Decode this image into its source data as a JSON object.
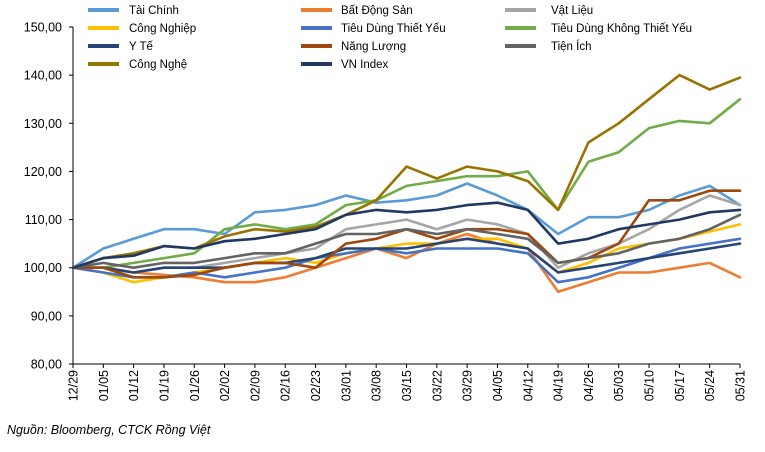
{
  "source_note": "Nguồn: Bloomberg, CTCK Rồng Việt",
  "chart_data": {
    "type": "line",
    "grid": false,
    "legend_placement": "top",
    "ylim": [
      80,
      150
    ],
    "y_ticks": [
      80,
      90,
      100,
      110,
      120,
      130,
      140,
      150
    ],
    "y_tick_labels": [
      "80,00",
      "90,00",
      "100,00",
      "110,00",
      "120,00",
      "130,00",
      "140,00",
      "150,00"
    ],
    "x": [
      "12/29",
      "01/05",
      "01/12",
      "01/19",
      "01/26",
      "02/02",
      "02/09",
      "02/16",
      "02/23",
      "03/01",
      "03/08",
      "03/15",
      "03/22",
      "03/29",
      "04/05",
      "04/12",
      "04/19",
      "04/26",
      "05/03",
      "05/10",
      "05/17",
      "05/24",
      "05/31"
    ],
    "series": [
      {
        "name": "Tài Chính",
        "color": "#5B9BD5",
        "values": [
          100,
          104,
          106,
          108,
          108,
          107,
          111.5,
          112,
          113,
          115,
          113.5,
          114,
          115,
          117.5,
          115,
          112,
          107,
          110.5,
          110.5,
          112,
          115,
          117,
          113
        ]
      },
      {
        "name": "Bất Động Sản",
        "color": "#ED7D31",
        "values": [
          100,
          100,
          99,
          98.5,
          98,
          97,
          97,
          98,
          100,
          102,
          104,
          102,
          105,
          107,
          105,
          104,
          95,
          97,
          99,
          99,
          100,
          101,
          98
        ]
      },
      {
        "name": "Vật Liệu",
        "color": "#A5A5A5",
        "values": [
          100,
          100,
          99,
          100,
          100,
          101,
          102,
          103,
          104,
          108,
          109,
          110,
          108,
          110,
          109,
          107,
          100,
          103,
          105,
          108,
          112,
          115,
          113
        ]
      },
      {
        "name": "Công Nghiệp",
        "color": "#FFC000",
        "values": [
          100,
          99,
          97,
          98,
          99,
          100,
          101,
          102,
          101,
          103,
          104,
          105,
          105,
          106,
          106,
          104,
          99,
          101,
          104,
          105,
          106,
          107.5,
          109
        ]
      },
      {
        "name": "Tiêu Dùng Thiết Yếu",
        "color": "#4472C4",
        "values": [
          100,
          99,
          98,
          98,
          99,
          98,
          99,
          100,
          102,
          103,
          104,
          103,
          104,
          104,
          104,
          103,
          97,
          98,
          100,
          102,
          104,
          105,
          106
        ]
      },
      {
        "name": "Tiêu Dùng Không Thiết Yếu",
        "color": "#70AD47",
        "values": [
          100,
          100,
          101,
          102,
          103,
          108,
          109,
          108,
          109,
          113,
          114,
          117,
          118,
          119,
          119,
          120,
          112,
          122,
          124,
          129,
          130.5,
          130,
          135
        ]
      },
      {
        "name": "Y Tế",
        "color": "#264478",
        "values": [
          100,
          100,
          99,
          100,
          100,
          100,
          101,
          101,
          102,
          104,
          104,
          104,
          105,
          106,
          105,
          104,
          99,
          100,
          101,
          102,
          103,
          104,
          105
        ]
      },
      {
        "name": "Năng Lượng",
        "color": "#9E480E",
        "values": [
          100,
          100,
          98,
          98,
          98.5,
          100,
          101,
          101,
          100,
          105,
          106,
          108,
          106,
          108,
          108,
          107,
          101,
          102,
          105,
          114,
          114,
          116,
          116
        ]
      },
      {
        "name": "Tiện Ích",
        "color": "#636363",
        "values": [
          100,
          101,
          100,
          101,
          101,
          102,
          103,
          103,
          105,
          107,
          107,
          108,
          107,
          108,
          107,
          106,
          101,
          102,
          103,
          105,
          106,
          108,
          111
        ]
      },
      {
        "name": "Công Nghệ",
        "color": "#997300",
        "values": [
          100,
          102,
          103,
          104.5,
          104,
          106.5,
          108,
          107.5,
          108.5,
          111,
          114,
          121,
          118.5,
          121,
          120,
          118,
          112,
          126,
          130,
          135,
          140,
          137,
          139.5
        ]
      },
      {
        "name": "VN Index",
        "color": "#1F3864",
        "values": [
          100,
          102,
          102.5,
          104.5,
          104,
          105.5,
          106,
          107,
          108,
          111,
          112,
          111.5,
          112,
          113,
          113.5,
          112,
          105,
          106,
          108,
          109,
          110,
          111.5,
          112
        ]
      }
    ]
  }
}
